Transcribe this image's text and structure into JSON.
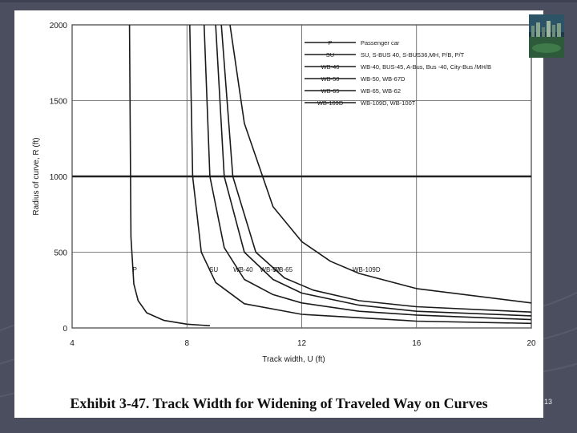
{
  "slide": {
    "caption": "Exhibit 3-47.  Track Width for Widening of Traveled Way on Curves",
    "slide_number": "13"
  },
  "colors": {
    "background": "#4a4e5e",
    "panel": "#ffffff",
    "ink": "#1a1a1a"
  },
  "chart_data": {
    "type": "line",
    "title": "",
    "xlabel": "Track width, U (ft)",
    "ylabel": "Radius of curve, R (ft)",
    "xlim": [
      4,
      20
    ],
    "ylim": [
      0,
      2000
    ],
    "x_ticks": [
      4,
      8,
      12,
      16,
      20
    ],
    "y_ticks": [
      0,
      500,
      1000,
      1500,
      2000
    ],
    "x_tick_labels": [
      "4",
      "8",
      "12",
      "16",
      "20"
    ],
    "y_tick_labels": [
      "0",
      "500",
      "1000",
      "1500",
      "2000"
    ],
    "grid": true,
    "legend_position": "top-right",
    "legend": [
      {
        "key": "P",
        "description": "Passenger car"
      },
      {
        "key": "SU",
        "description": "SU, S-BUS 40, S-BUS36,MH, P/B, P/T"
      },
      {
        "key": "WB-40",
        "description": "WB-40, BUS-45, A-Bus, Bus -40, City-Bus /MH/B"
      },
      {
        "key": "WB-50",
        "description": "WB-50, WB-67D"
      },
      {
        "key": "WB-65",
        "description": "WB-65, WB-62"
      },
      {
        "key": "WB-109D",
        "description": "WB-109D, WB-100T"
      }
    ],
    "series": [
      {
        "name": "P",
        "label": "P",
        "x": [
          6.0,
          6.05,
          6.15,
          6.3,
          6.6,
          7.2,
          8.0,
          8.8
        ],
        "y": [
          2000,
          600,
          290,
          180,
          100,
          50,
          25,
          15
        ]
      },
      {
        "name": "SU",
        "label": "SU",
        "x": [
          8.1,
          8.2,
          8.5,
          9.0,
          10.0,
          12.0,
          16.0,
          20.0
        ],
        "y": [
          2000,
          1000,
          500,
          300,
          160,
          90,
          45,
          30
        ]
      },
      {
        "name": "WB-40",
        "label": "WB-40",
        "x": [
          8.6,
          8.8,
          9.3,
          10.0,
          11.0,
          12.0,
          14.0,
          16.0,
          20.0
        ],
        "y": [
          2000,
          1000,
          530,
          320,
          220,
          165,
          110,
          85,
          55
        ]
      },
      {
        "name": "WB-50",
        "label": "WB-50",
        "x": [
          9.0,
          9.3,
          10.0,
          11.0,
          12.0,
          14.0,
          16.0,
          20.0
        ],
        "y": [
          2000,
          1000,
          500,
          320,
          230,
          150,
          110,
          80
        ]
      },
      {
        "name": "WB-65",
        "label": "WB-65",
        "x": [
          9.2,
          9.6,
          10.4,
          11.4,
          12.4,
          14.0,
          16.0,
          20.0
        ],
        "y": [
          2000,
          1000,
          500,
          330,
          250,
          180,
          140,
          105
        ]
      },
      {
        "name": "WB-109D",
        "label": "WB-109D",
        "x": [
          9.5,
          10.0,
          11.0,
          12.0,
          13.0,
          14.0,
          16.0,
          20.0
        ],
        "y": [
          2000,
          1350,
          800,
          570,
          440,
          360,
          260,
          165
        ]
      }
    ]
  }
}
